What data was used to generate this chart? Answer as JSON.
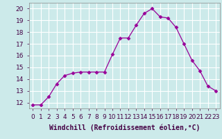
{
  "x": [
    0,
    1,
    2,
    3,
    4,
    5,
    6,
    7,
    8,
    9,
    10,
    11,
    12,
    13,
    14,
    15,
    16,
    17,
    18,
    19,
    20,
    21,
    22,
    23
  ],
  "y": [
    11.8,
    11.8,
    12.5,
    13.6,
    14.3,
    14.5,
    14.6,
    14.6,
    14.6,
    14.6,
    16.1,
    17.5,
    17.5,
    18.6,
    19.6,
    20.0,
    19.3,
    19.2,
    18.4,
    17.0,
    15.6,
    14.7,
    13.4,
    13.0
  ],
  "line_color": "#990099",
  "marker": "D",
  "marker_size": 2.5,
  "xlabel": "Windchill (Refroidissement éolien,°C)",
  "ylim": [
    11.5,
    20.5
  ],
  "xlim": [
    -0.5,
    23.5
  ],
  "yticks": [
    12,
    13,
    14,
    15,
    16,
    17,
    18,
    19,
    20
  ],
  "xtick_labels": [
    "0",
    "1",
    "2",
    "3",
    "4",
    "5",
    "6",
    "7",
    "8",
    "9",
    "10",
    "11",
    "12",
    "13",
    "14",
    "15",
    "16",
    "17",
    "18",
    "19",
    "20",
    "21",
    "22",
    "23"
  ],
  "bg_color": "#cceaea",
  "grid_color": "#ffffff",
  "font_size": 6.5,
  "xlabel_fontsize": 7.0
}
